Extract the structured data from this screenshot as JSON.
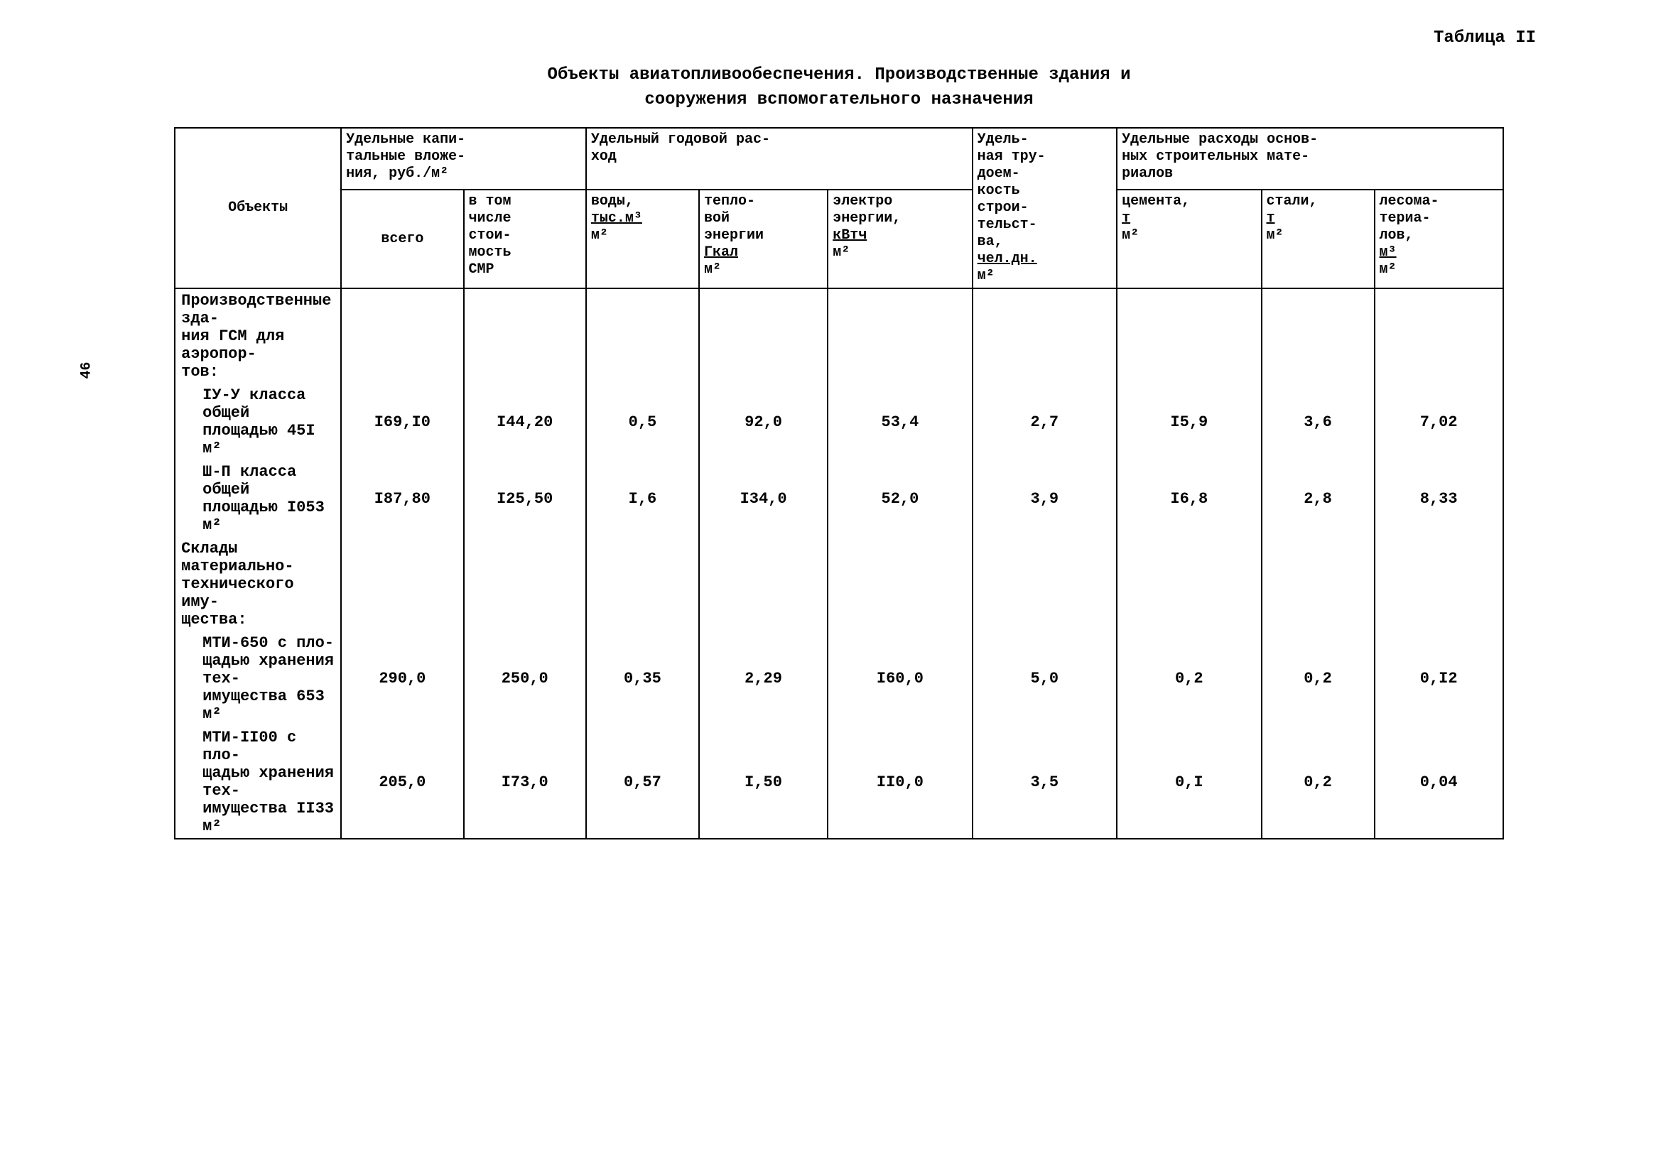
{
  "pageNumber": "46",
  "tableLabel": "Таблица II",
  "title": "Объекты авиатопливообеспечения. Производственные здания и",
  "subtitle": "сооружения вспомогательного назначения",
  "headers": {
    "objects": "Объекты",
    "capital": "Удельные капи-\nтальные вложе-\nния, руб./м²",
    "total": "всего",
    "smr": "в том\nчисле\nстои-\nмость\nСМР",
    "annual": "Удельный годовой рас-\nход",
    "water": "воды,\nтыс.м³\nм²",
    "heat": "тепло-\nвой\nэнергии\nГкал\nм²",
    "electro": "электро\nэнергии,\nкВтч\nм²",
    "labor": "Удель-\nная тру-\nдоем-\nкость\nстрои-\nтельст-\nва,\nчел.дн.\nм²",
    "materials": "Удельные расходы основ-\nных строительных мате-\nриалов",
    "cement": "цемента,\nт\nм²",
    "steel": "стали,\nт\nм²",
    "wood": "лесома-\nтериа-\nлов,\nм³\nм²"
  },
  "rows": [
    {
      "label": "Производственные зда-\nния ГСМ для аэропор-\nтов:",
      "type": "header",
      "values": [
        "",
        "",
        "",
        "",
        "",
        "",
        "",
        "",
        ""
      ]
    },
    {
      "label": "IУ-У класса общей\nплощадью 45I м²",
      "type": "indent",
      "values": [
        "I69,I0",
        "I44,20",
        "0,5",
        "92,0",
        "53,4",
        "2,7",
        "I5,9",
        "3,6",
        "7,02"
      ]
    },
    {
      "label": "Ш-П класса общей\nплощадью I053 м²",
      "type": "indent",
      "values": [
        "I87,80",
        "I25,50",
        "I,6",
        "I34,0",
        "52,0",
        "3,9",
        "I6,8",
        "2,8",
        "8,33"
      ]
    },
    {
      "label": "Склады материально-\nтехнического иму-\nщества:",
      "type": "header",
      "values": [
        "",
        "",
        "",
        "",
        "",
        "",
        "",
        "",
        ""
      ]
    },
    {
      "label": "МТИ-650  с пло-\nщадью хранения тех-\nимущества 653 м²",
      "type": "indent",
      "values": [
        "290,0",
        "250,0",
        "0,35",
        "2,29",
        "I60,0",
        "5,0",
        "0,2",
        "0,2",
        "0,I2"
      ]
    },
    {
      "label": "МТИ-II00 с пло-\nщадью хранения тех-\nимущества II33 м²",
      "type": "indent",
      "values": [
        "205,0",
        "I73,0",
        "0,57",
        "I,50",
        "II0,0",
        "3,5",
        "0,I",
        "0,2",
        "0,04"
      ]
    }
  ]
}
